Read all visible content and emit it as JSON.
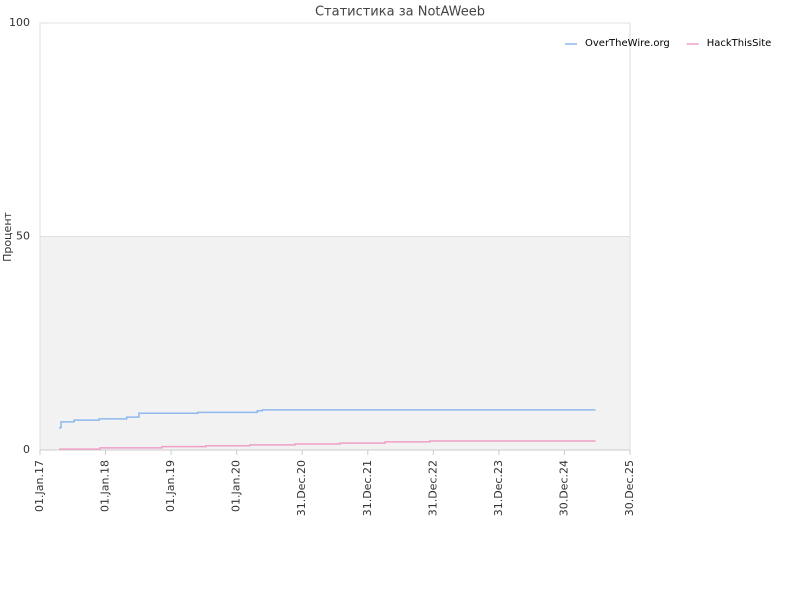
{
  "chart_data": {
    "type": "line",
    "step": true,
    "title": "Статистика за NotAWeeb",
    "y_label": "Процент",
    "xlim": [
      "2017-01-01",
      "2025-12-30"
    ],
    "xticks": [
      {
        "value": "2017-01-01",
        "label": "01.Jan.17"
      },
      {
        "value": "2018-01-01",
        "label": "01.Jan.18"
      },
      {
        "value": "2019-01-01",
        "label": "01.Jan.19"
      },
      {
        "value": "2020-01-01",
        "label": "01.Jan.20"
      },
      {
        "value": "2020-12-31",
        "label": "31.Dec.20"
      },
      {
        "value": "2021-12-31",
        "label": "31.Dec.21"
      },
      {
        "value": "2022-12-31",
        "label": "31.Dec.22"
      },
      {
        "value": "2023-12-31",
        "label": "31.Dec.23"
      },
      {
        "value": "2024-12-30",
        "label": "30.Dec.24"
      },
      {
        "value": "2025-12-30",
        "label": "30.Dec.25"
      }
    ],
    "ylim": [
      0,
      100
    ],
    "yticks": [
      0,
      50,
      100
    ],
    "grid": true,
    "legend": "top-right",
    "series": [
      {
        "name": "OverTheWire.org",
        "color": "#8fb8ee",
        "x": [
          "2017-04-17",
          "2017-04-28",
          "2017-07-10",
          "2017-11-27",
          "2018-04-29",
          "2018-07-06",
          "2019-05-29",
          "2020-04-25",
          "2020-05-23",
          "2025-06-21"
        ],
        "values": [
          5.2,
          6.6,
          7.0,
          7.3,
          7.7,
          8.6,
          8.8,
          9.2,
          9.4,
          9.4
        ]
      },
      {
        "name": "HackThisSite",
        "color": "#f0a0c8",
        "x": [
          "2017-04-17",
          "2017-12-01",
          "2018-11-11",
          "2019-07-14",
          "2020-03-15",
          "2020-11-21",
          "2021-07-29",
          "2022-04-06",
          "2022-12-12",
          "2025-06-21"
        ],
        "values": [
          0.2,
          0.5,
          0.8,
          1.0,
          1.2,
          1.4,
          1.6,
          1.9,
          2.1,
          2.1
        ]
      }
    ]
  }
}
